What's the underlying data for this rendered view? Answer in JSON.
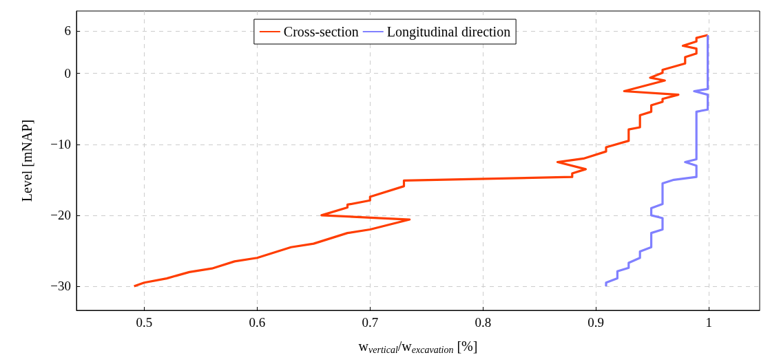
{
  "chart_data": {
    "type": "line",
    "xlabel": "w$_{vertical}$/w$_{excavation}$ [%]",
    "ylabel": "Level [mNAP]",
    "xlim": [
      0.44,
      1.045
    ],
    "xticks": [
      0.5,
      0.6,
      0.7,
      0.8,
      0.9,
      1
    ],
    "ylim": [
      -33.4,
      8.8
    ],
    "yticks": [
      {
        "value": -30,
        "label": "−30"
      },
      {
        "value": -20,
        "label": "−20"
      },
      {
        "value": -10,
        "label": "−10"
      },
      0,
      6
    ],
    "grid": true,
    "legend": "top",
    "marker": "none",
    "line_style": "solid",
    "series": [
      {
        "name": "Cross-section",
        "color": "#ff3d00",
        "x": [
          0.491,
          0.5,
          0.52,
          0.54,
          0.56,
          0.58,
          0.6,
          0.63,
          0.65,
          0.68,
          0.7,
          0.735,
          0.657,
          0.68,
          0.68,
          0.7,
          0.7,
          0.73,
          0.73,
          0.879,
          0.879,
          0.891,
          0.866,
          0.889,
          0.909,
          0.909,
          0.929,
          0.929,
          0.939,
          0.939,
          0.949,
          0.949,
          0.959,
          0.959,
          0.973,
          0.925,
          0.961,
          0.948,
          0.959,
          0.959,
          0.979,
          0.979,
          0.989,
          0.989,
          0.977,
          0.989,
          0.989,
          0.999
        ],
        "values": [
          -30,
          -29.5,
          -28.9,
          -28,
          -27.5,
          -26.5,
          -26,
          -24.5,
          -24,
          -22.5,
          -22,
          -20.6,
          -20,
          -18.9,
          -18.5,
          -17.9,
          -17.4,
          -15.9,
          -15.1,
          -14.6,
          -14.1,
          -13.5,
          -12.5,
          -12,
          -11,
          -10.4,
          -9.5,
          -7.9,
          -7.6,
          -5.9,
          -5.4,
          -4.5,
          -4,
          -3.6,
          -3,
          -2.5,
          -1,
          -0.6,
          0.1,
          0.5,
          1.4,
          2.3,
          2.8,
          3.5,
          3.9,
          4.5,
          5,
          5.4
        ]
      },
      {
        "name": "Longitudinal direction",
        "color": "#8080ff",
        "x": [
          0.909,
          0.909,
          0.919,
          0.919,
          0.929,
          0.929,
          0.939,
          0.939,
          0.949,
          0.949,
          0.959,
          0.959,
          0.949,
          0.949,
          0.959,
          0.959,
          0.969,
          0.989,
          0.989,
          0.979,
          0.989,
          0.989,
          0.999,
          0.999,
          0.987,
          0.999,
          0.999
        ],
        "values": [
          -30,
          -29.5,
          -28.9,
          -27.9,
          -27.4,
          -26.7,
          -26,
          -25.1,
          -24.5,
          -22.5,
          -22,
          -20.4,
          -20,
          -19,
          -18.4,
          -15.5,
          -15,
          -14.6,
          -13,
          -12.5,
          -12.1,
          -5.4,
          -5.1,
          -3,
          -2.5,
          -2.2,
          5.4
        ]
      }
    ]
  }
}
